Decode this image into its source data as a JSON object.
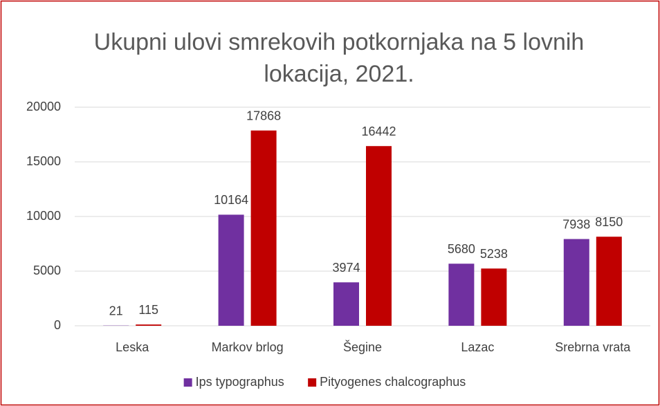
{
  "chart_data": {
    "type": "bar",
    "title": "Ukupni ulovi smrekovih potkornjaka na 5 lovnih lokacija, 2021.",
    "categories": [
      "Leska",
      "Markov brlog",
      "Šegine",
      "Lazac",
      "Srebrna vrata"
    ],
    "series": [
      {
        "name": "Ips typographus",
        "color": "#7030a0",
        "values": [
          21,
          10164,
          3974,
          5680,
          7938
        ]
      },
      {
        "name": "Pityogenes chalcographus",
        "color": "#c00000",
        "values": [
          115,
          17868,
          16442,
          5238,
          8150
        ]
      }
    ],
    "ylim": [
      0,
      20000
    ],
    "yticks": [
      0,
      5000,
      10000,
      15000,
      20000
    ],
    "grid": true,
    "legend": "bottom"
  }
}
